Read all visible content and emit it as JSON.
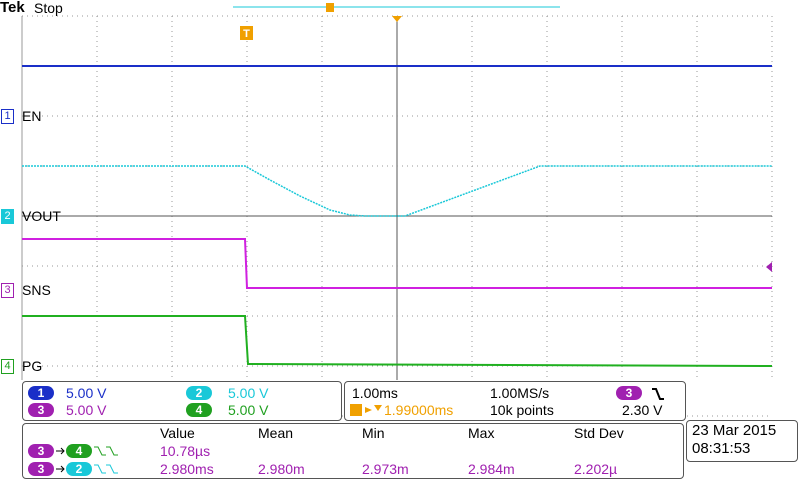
{
  "header": {
    "brand": "Tek",
    "status": "Stop"
  },
  "channels": [
    {
      "number": "1",
      "label": "EN",
      "scale": "5.00 V"
    },
    {
      "number": "2",
      "label": "VOUT",
      "scale": "5.00 V"
    },
    {
      "number": "3",
      "label": "SNS",
      "scale": "5.00 V"
    },
    {
      "number": "4",
      "label": "PG",
      "scale": "5.00 V"
    }
  ],
  "timebase": {
    "scale": "1.00ms",
    "sample_rate": "1.00MS/s",
    "trigger_position": "1.99000ms",
    "record_length": "10k points",
    "trigger_source": "3",
    "trigger_level": "2.30 V"
  },
  "measurements": {
    "headers": [
      "Value",
      "Mean",
      "Min",
      "Max",
      "Std Dev"
    ],
    "rows": [
      {
        "from": "3",
        "to": "4",
        "values": [
          "10.78µs"
        ]
      },
      {
        "from": "3",
        "to": "2",
        "values": [
          "2.980ms",
          "2.980m",
          "2.973m",
          "2.984m",
          "2.202µ"
        ]
      }
    ]
  },
  "datetime": {
    "date": "23 Mar 2015",
    "time": "08:31:53"
  }
}
